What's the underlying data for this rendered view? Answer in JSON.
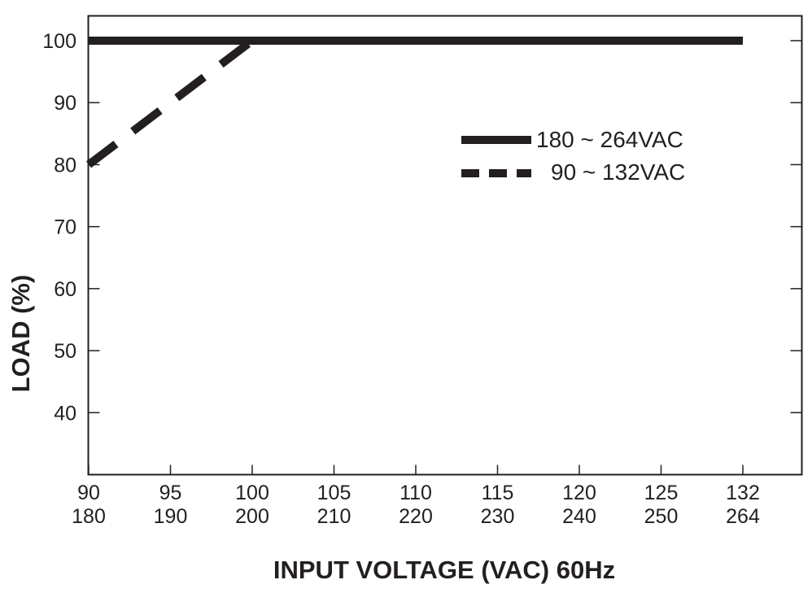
{
  "chart_data": {
    "type": "line",
    "title": "",
    "xlabel": "INPUT VOLTAGE (VAC) 60Hz",
    "ylabel": "LOAD (%)",
    "x_ticks": [
      {
        "top": "90",
        "bottom": "180"
      },
      {
        "top": "95",
        "bottom": "190"
      },
      {
        "top": "100",
        "bottom": "200"
      },
      {
        "top": "105",
        "bottom": "210"
      },
      {
        "top": "110",
        "bottom": "220"
      },
      {
        "top": "115",
        "bottom": "230"
      },
      {
        "top": "120",
        "bottom": "240"
      },
      {
        "top": "125",
        "bottom": "250"
      },
      {
        "top": "132",
        "bottom": "264"
      }
    ],
    "y_ticks": [
      "40",
      "50",
      "60",
      "70",
      "80",
      "90",
      "100"
    ],
    "ylim": [
      30,
      104
    ],
    "grid": false,
    "legend_position": "top-right",
    "series": [
      {
        "name": "180 ~ 264VAC",
        "style": "solid",
        "x_axis": "bottom",
        "x": [
          180,
          264
        ],
        "y": [
          100,
          100
        ]
      },
      {
        "name": "90 ~ 132VAC",
        "style": "dashed",
        "x_axis": "top",
        "x": [
          90,
          100
        ],
        "y": [
          80,
          100
        ]
      }
    ],
    "line_color": "#231f20"
  }
}
